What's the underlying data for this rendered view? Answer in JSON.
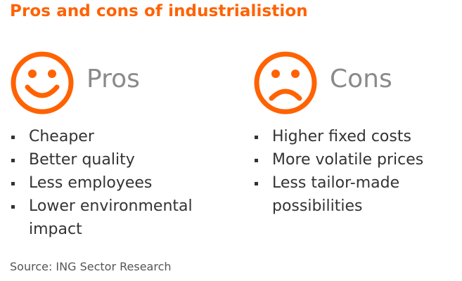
{
  "title": "Pros and cons of industrialistion",
  "colors": {
    "accent": "#ff6200",
    "heading_grey": "#8a8a8a",
    "text": "#333333"
  },
  "pros": {
    "icon": "smiley-face-icon",
    "label": "Pros",
    "items": [
      "Cheaper",
      "Better quality",
      "Less employees",
      "Lower environmental impact"
    ]
  },
  "cons": {
    "icon": "sad-face-icon",
    "label": "Cons",
    "items": [
      "Higher fixed costs",
      "More volatile prices",
      "Less tailor-made possibilities"
    ]
  },
  "source": "Source: ING Sector Research"
}
